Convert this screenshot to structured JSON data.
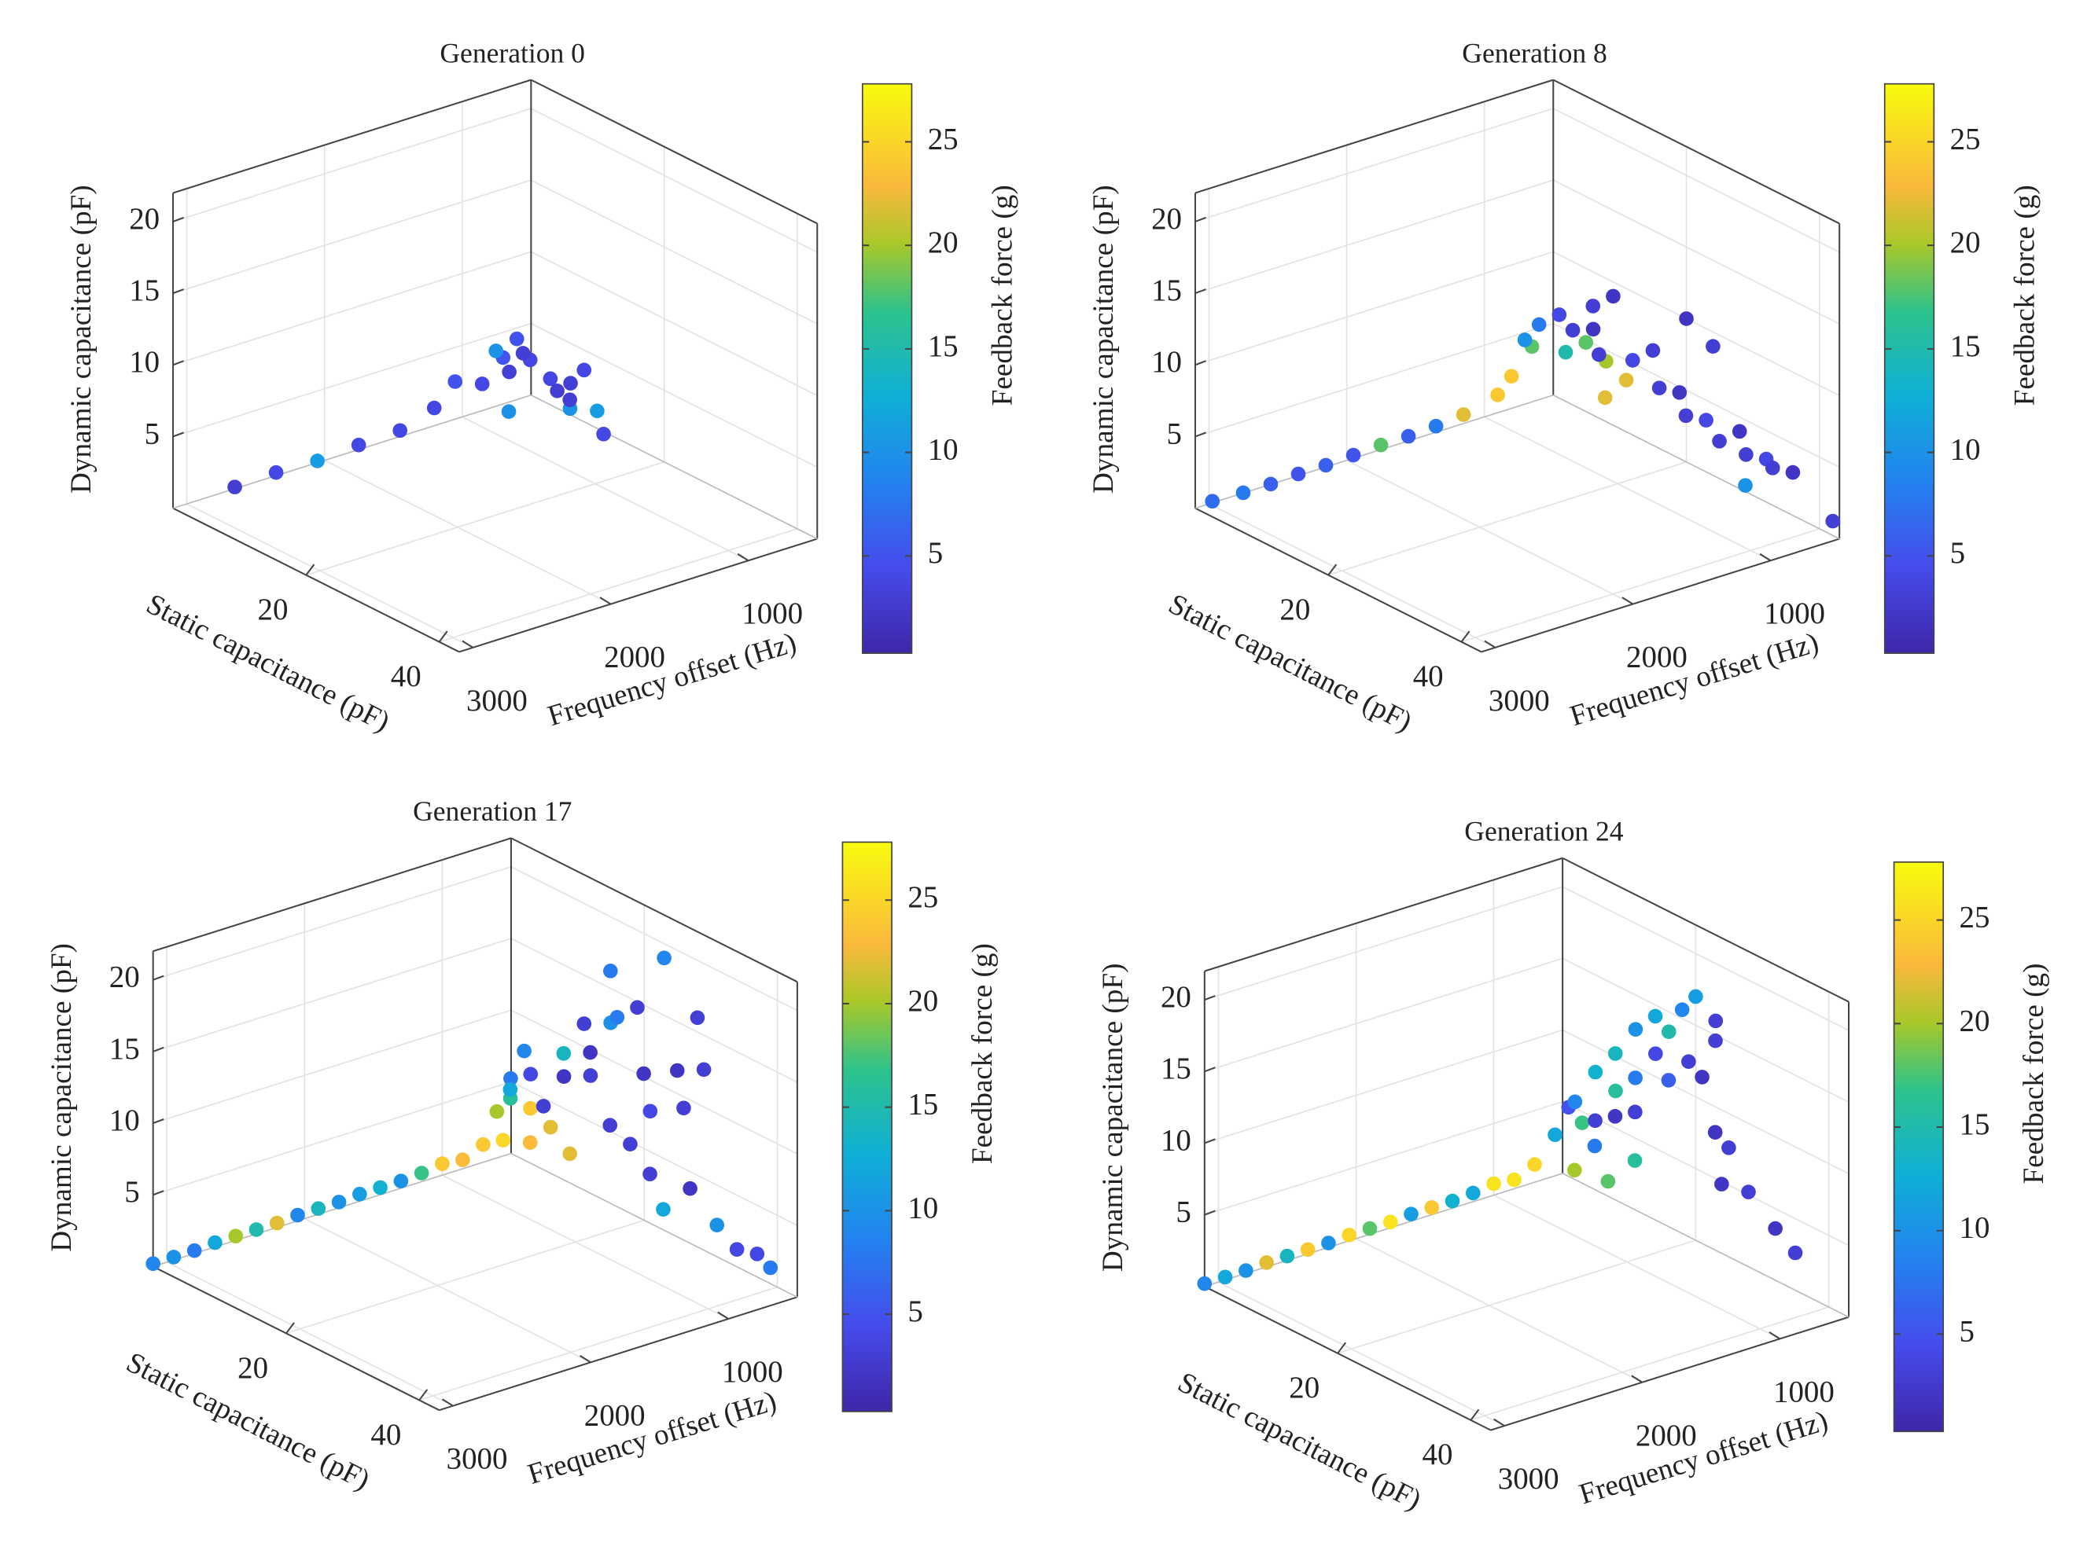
{
  "chart_data": [
    {
      "type": "scatter3d",
      "title": "Generation 0",
      "xlabel": "Static capacitance (pF)",
      "ylabel": "Frequency offset (Hz)",
      "zlabel": "Dynamic capacitance (pF)",
      "colorbar_label": "Feedback force (g)",
      "xlim": [
        0,
        43
      ],
      "ylim": [
        3100,
        500
      ],
      "zlim": [
        0,
        22
      ],
      "clim": [
        0.3,
        27.8
      ],
      "xticks": [
        20,
        40
      ],
      "yticks": [
        1000,
        2000,
        3000
      ],
      "zticks": [
        5,
        10,
        15,
        20
      ],
      "cticks": [
        5,
        10,
        15,
        20,
        25
      ],
      "grid": true,
      "x": [
        1,
        1,
        1,
        1,
        1,
        2,
        1,
        3,
        5,
        2,
        4,
        6,
        8,
        10,
        12,
        3,
        5,
        9,
        7,
        11,
        14,
        2,
        6
      ],
      "y": [
        2700,
        2400,
        2100,
        1800,
        1500,
        1300,
        1100,
        1000,
        900,
        800,
        700,
        650,
        600,
        700,
        600,
        900,
        800,
        550,
        1000,
        750,
        650,
        700,
        600
      ],
      "z": [
        0.5,
        0.6,
        0.5,
        0.7,
        0.8,
        2,
        3,
        3,
        4,
        4,
        4,
        3,
        3,
        2,
        2,
        5,
        5,
        4,
        2,
        3,
        1,
        5,
        2
      ],
      "c": [
        3,
        4,
        11,
        4,
        4,
        4,
        5,
        4,
        3,
        5,
        4,
        4,
        3,
        10,
        11,
        10,
        3,
        4,
        10,
        3,
        4,
        5,
        3
      ]
    },
    {
      "type": "scatter3d",
      "title": "Generation 8",
      "xlabel": "Static capacitance (pF)",
      "ylabel": "Frequency offset (Hz)",
      "zlabel": "Dynamic capacitance (pF)",
      "colorbar_label": "Feedback force (g)",
      "xlim": [
        0,
        43
      ],
      "ylim": [
        3100,
        500
      ],
      "zlim": [
        0,
        22
      ],
      "clim": [
        0.3,
        27.8
      ],
      "xticks": [
        20,
        40
      ],
      "yticks": [
        1000,
        2000,
        3000
      ],
      "zticks": [
        5,
        10,
        15,
        20
      ],
      "cticks": [
        5,
        10,
        15,
        20,
        25
      ],
      "grid": true,
      "x": [
        0.5,
        1,
        1,
        1,
        1,
        1,
        1,
        1,
        1,
        1,
        2,
        2,
        3,
        2,
        4,
        5,
        6,
        4,
        8,
        10,
        12,
        7,
        9,
        14,
        16,
        18,
        20,
        22,
        24,
        26,
        28,
        30,
        32,
        34,
        36,
        33,
        20,
        24,
        42,
        14,
        6,
        11
      ],
      "y": [
        3000,
        2800,
        2600,
        2400,
        2200,
        2000,
        1800,
        1600,
        1400,
        1200,
        1000,
        900,
        800,
        700,
        650,
        600,
        700,
        900,
        650,
        600,
        550,
        550,
        500,
        600,
        550,
        600,
        550,
        600,
        550,
        550,
        500,
        550,
        500,
        550,
        500,
        700,
        500,
        500,
        500,
        800,
        500,
        700
      ],
      "z": [
        0.3,
        0.4,
        0.4,
        0.5,
        0.5,
        0.6,
        0.7,
        0.7,
        0.8,
        1,
        2,
        3,
        5,
        6,
        7,
        6,
        5,
        6,
        6,
        5,
        4,
        8,
        9,
        6,
        7,
        5,
        5,
        4,
        4,
        3,
        4,
        3,
        3,
        3,
        3,
        2,
        10,
        9,
        1,
        4,
        6,
        6
      ],
      "c": [
        7,
        8,
        6,
        5,
        6,
        5,
        18,
        6,
        8,
        22,
        24,
        24,
        18,
        8,
        4,
        3,
        15,
        10,
        18,
        20,
        22,
        3,
        2,
        4,
        3,
        3,
        2,
        3,
        4,
        3,
        2,
        3,
        4,
        3,
        2,
        10,
        2,
        3,
        3,
        22,
        2,
        3
      ]
    },
    {
      "type": "scatter3d",
      "title": "Generation 17",
      "xlabel": "Static capacitance (pF)",
      "ylabel": "Frequency offset (Hz)",
      "zlabel": "Dynamic capacitance (pF)",
      "colorbar_label": "Feedback force (g)",
      "xlim": [
        0,
        43
      ],
      "ylim": [
        3100,
        500
      ],
      "zlim": [
        0,
        22
      ],
      "clim": [
        0.3,
        27.8
      ],
      "xticks": [
        20,
        40
      ],
      "yticks": [
        1000,
        2000,
        3000
      ],
      "zticks": [
        5,
        10,
        15,
        20
      ],
      "cticks": [
        5,
        10,
        15,
        20,
        25
      ],
      "grid": true,
      "x": [
        0,
        0,
        0,
        0,
        0,
        0,
        0,
        0,
        0,
        0,
        0,
        0,
        0,
        0,
        0,
        1,
        2,
        2,
        3,
        2,
        4,
        5,
        3,
        6,
        7,
        8,
        5,
        9,
        10,
        11,
        12,
        14,
        15,
        16,
        18,
        20,
        22,
        24,
        19,
        26,
        28,
        17,
        23,
        28,
        30,
        21,
        25,
        30,
        33,
        36,
        38,
        40,
        27,
        14
      ],
      "y": [
        3100,
        2950,
        2800,
        2650,
        2500,
        2350,
        2200,
        2050,
        1900,
        1750,
        1600,
        1450,
        1300,
        1150,
        1000,
        900,
        800,
        700,
        650,
        600,
        700,
        600,
        550,
        650,
        700,
        600,
        800,
        700,
        600,
        650,
        550,
        600,
        650,
        550,
        600,
        550,
        600,
        650,
        700,
        550,
        600,
        600,
        500,
        500,
        550,
        650,
        700,
        650,
        600,
        600,
        550,
        550,
        700,
        750
      ],
      "z": [
        0.2,
        0.2,
        0.2,
        0.3,
        0.3,
        0.3,
        0.3,
        0.4,
        0.4,
        0.4,
        0.5,
        0.5,
        0.5,
        0.6,
        0.8,
        1,
        2,
        4,
        5,
        6,
        6,
        7,
        8,
        5,
        3,
        4,
        3,
        6,
        8,
        10,
        12,
        9,
        11,
        13,
        14,
        15,
        11,
        9,
        7,
        12,
        10,
        17,
        19,
        16,
        13,
        6,
        5,
        5,
        3,
        2,
        2,
        1.5,
        3,
        4
      ],
      "c": [
        9,
        10,
        8,
        12,
        20,
        15,
        22,
        9,
        14,
        10,
        11,
        13,
        10,
        17,
        24,
        23,
        24,
        20,
        16,
        8,
        12,
        4,
        9,
        24,
        23,
        22,
        25,
        3,
        2,
        14,
        3,
        3,
        2,
        10,
        8,
        3,
        2,
        4,
        3,
        2,
        3,
        8,
        9,
        3,
        3,
        3,
        3,
        2,
        10,
        4,
        4,
        8,
        12,
        22
      ]
    },
    {
      "type": "scatter3d",
      "title": "Generation 24",
      "xlabel": "Static capacitance (pF)",
      "ylabel": "Frequency offset (Hz)",
      "zlabel": "Dynamic capacitance (pF)",
      "colorbar_label": "Feedback force (g)",
      "xlim": [
        0,
        43
      ],
      "ylim": [
        3100,
        500
      ],
      "zlim": [
        0,
        22
      ],
      "clim": [
        0.3,
        27.8
      ],
      "xticks": [
        20,
        40
      ],
      "yticks": [
        1000,
        2000,
        3000
      ],
      "zticks": [
        5,
        10,
        15,
        20
      ],
      "cticks": [
        5,
        10,
        15,
        20,
        25
      ],
      "grid": true,
      "x": [
        0,
        0,
        0,
        0,
        0,
        0,
        0,
        0,
        0,
        0,
        0,
        0,
        0,
        0,
        0,
        1,
        2,
        3,
        4,
        5,
        6,
        7,
        8,
        9,
        10,
        11,
        12,
        13,
        14,
        15,
        16,
        17,
        18,
        19,
        20,
        21,
        22,
        23,
        24,
        25,
        26,
        27,
        30,
        33,
        36,
        12,
        8,
        15,
        10
      ],
      "y": [
        3100,
        2950,
        2800,
        2650,
        2500,
        2350,
        2200,
        2050,
        1900,
        1750,
        1600,
        1450,
        1300,
        1150,
        1000,
        900,
        800,
        700,
        650,
        600,
        700,
        600,
        650,
        550,
        600,
        650,
        550,
        600,
        650,
        550,
        600,
        550,
        600,
        550,
        500,
        600,
        550,
        500,
        550,
        600,
        550,
        650,
        600,
        550,
        550,
        750,
        800,
        700,
        750
      ],
      "z": [
        0.2,
        0.2,
        0.2,
        0.3,
        0.3,
        0.3,
        0.3,
        0.4,
        0.4,
        0.4,
        0.5,
        0.5,
        0.5,
        0.6,
        0.8,
        1,
        2,
        4,
        6,
        5,
        7,
        9,
        6,
        8,
        11,
        7,
        13,
        10,
        8,
        12,
        15,
        14,
        11,
        16,
        17,
        13,
        12,
        16,
        15,
        9,
        8,
        6,
        6,
        4,
        3,
        3,
        3,
        5,
        5
      ],
      "c": [
        9,
        12,
        10,
        22,
        14,
        24,
        10,
        25,
        18,
        26,
        11,
        24,
        13,
        12,
        26,
        26,
        25,
        12,
        5,
        17,
        9,
        13,
        3,
        16,
        14,
        2,
        10,
        8,
        3,
        4,
        12,
        15,
        6,
        9,
        11,
        3,
        2,
        3,
        3,
        2,
        3,
        2,
        3,
        2,
        3,
        18,
        20,
        16,
        8
      ]
    }
  ]
}
